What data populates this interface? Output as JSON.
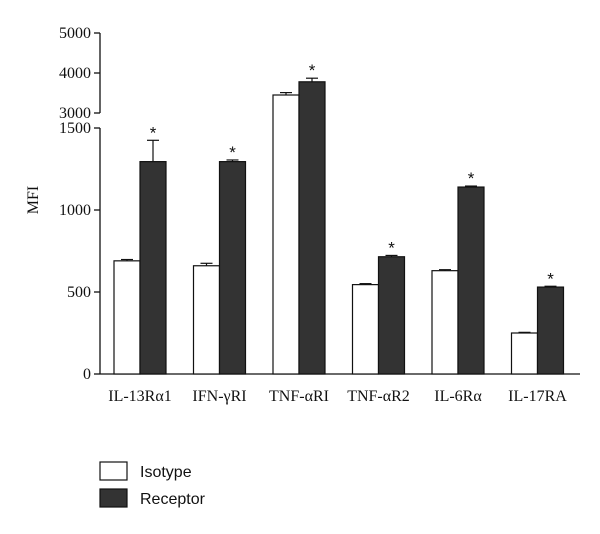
{
  "chart_data": {
    "type": "bar",
    "ylabel": "MFI",
    "categories": [
      "IL-13Rα1",
      "IFN-γRI",
      "TNF-αRI",
      "TNF-αR2",
      "IL-6Rα",
      "IL-17RA"
    ],
    "series": [
      {
        "name": "Isotype",
        "values": [
          690,
          660,
          3450,
          545,
          630,
          250
        ],
        "errors": [
          8,
          15,
          60,
          6,
          6,
          4
        ],
        "color": "#ffffff"
      },
      {
        "name": "Receptor",
        "values": [
          1295,
          1295,
          3780,
          715,
          1140,
          530
        ],
        "errors": [
          130,
          10,
          90,
          8,
          6,
          5
        ],
        "color": "#333333"
      }
    ],
    "significance": [
      "*",
      "*",
      "*",
      "*",
      "*",
      "*"
    ],
    "axis_break": true,
    "lower_ylim": [
      0,
      1500
    ],
    "lower_yticks": [
      0,
      500,
      1000,
      1500
    ],
    "upper_ylim": [
      3000,
      5000
    ],
    "upper_yticks": [
      3000,
      4000,
      5000
    ],
    "grid": false,
    "legend_position": "bottom-left"
  }
}
